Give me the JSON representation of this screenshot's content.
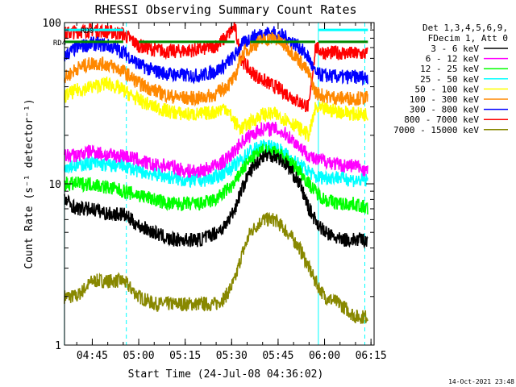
{
  "chart_data": {
    "type": "line",
    "title": "RHESSI Observing Summary Count Rates",
    "xlabel": "Start Time (24-Jul-08 04:36:02)",
    "ylabel": "Count Rate (s⁻¹ detector⁻¹)",
    "yscale": "log",
    "xlim": [
      "04:36:02",
      "06:16:00"
    ],
    "ylim": [
      1,
      100
    ],
    "x_ticks": [
      "04:45",
      "05:00",
      "05:15",
      "05:30",
      "05:45",
      "06:00",
      "06:15"
    ],
    "y_ticks": [
      "1",
      "10",
      "100"
    ],
    "grid": false,
    "legend_position": "top-right",
    "legend_header": [
      "Det 1,3,4,5,6,9,",
      "FDecim 1, Att 0"
    ],
    "footer_date": "14-Oct-2021 23:48",
    "series": [
      {
        "name": "3 - 6 keV",
        "color": "#000000",
        "x": [
          "04:36",
          "04:40",
          "04:45",
          "04:50",
          "04:55",
          "05:00",
          "05:05",
          "05:10",
          "05:15",
          "05:20",
          "05:25",
          "05:28",
          "05:31",
          "05:33",
          "05:36",
          "05:40",
          "05:44",
          "05:48",
          "05:52",
          "05:55",
          "05:57",
          "06:00",
          "06:05",
          "06:10",
          "06:14"
        ],
        "y": [
          8,
          7,
          7,
          6.5,
          6.5,
          5.5,
          5,
          4.5,
          4.5,
          4.5,
          5,
          5.5,
          7,
          9,
          12,
          15,
          15,
          13,
          10,
          7,
          6,
          5,
          4.5,
          4.5,
          4.5
        ]
      },
      {
        "name": "6 - 12 keV",
        "color": "#ff00ff",
        "x": [
          "04:36",
          "04:40",
          "04:45",
          "04:50",
          "04:55",
          "05:00",
          "05:05",
          "05:10",
          "05:15",
          "05:20",
          "05:25",
          "05:28",
          "05:31",
          "05:33",
          "05:36",
          "05:40",
          "05:44",
          "05:48",
          "05:52",
          "05:55",
          "05:57",
          "06:00",
          "06:05",
          "06:10",
          "06:14"
        ],
        "y": [
          15,
          15,
          16,
          15,
          15,
          14,
          13,
          13,
          12,
          12,
          13,
          14,
          16,
          18,
          20,
          22,
          22,
          20,
          17,
          15,
          14,
          14,
          13,
          13,
          12
        ]
      },
      {
        "name": "12 - 25 keV",
        "color": "#00ff00",
        "x": [
          "04:36",
          "04:40",
          "04:45",
          "04:50",
          "04:55",
          "05:00",
          "05:05",
          "05:10",
          "05:15",
          "05:20",
          "05:25",
          "05:28",
          "05:31",
          "05:33",
          "05:36",
          "05:40",
          "05:44",
          "05:48",
          "05:52",
          "05:55",
          "05:57",
          "06:00",
          "06:05",
          "06:10",
          "06:14"
        ],
        "y": [
          10,
          10,
          10,
          9.5,
          9,
          8.5,
          8,
          7.5,
          7.5,
          7.5,
          8,
          9,
          10,
          12,
          14,
          16,
          16,
          14,
          12,
          10,
          9,
          8,
          7.5,
          7.5,
          7
        ]
      },
      {
        "name": "25 - 50 keV",
        "color": "#00ffff",
        "x": [
          "04:36",
          "04:40",
          "04:45",
          "04:50",
          "04:55",
          "05:00",
          "05:05",
          "05:10",
          "05:15",
          "05:20",
          "05:25",
          "05:28",
          "05:31",
          "05:33",
          "05:36",
          "05:40",
          "05:44",
          "05:48",
          "05:52",
          "05:55",
          "05:57",
          "06:00",
          "06:05",
          "06:10",
          "06:14"
        ],
        "y": [
          13,
          13,
          13.5,
          13,
          13,
          12,
          11.5,
          11,
          10.5,
          10.5,
          11,
          12,
          13,
          14,
          16,
          17,
          17,
          15,
          13,
          12,
          11,
          11,
          11,
          10.5,
          10.5
        ]
      },
      {
        "name": "50 - 100 keV",
        "color": "#ffff00",
        "x": [
          "04:36",
          "04:40",
          "04:45",
          "04:50",
          "04:55",
          "05:00",
          "05:05",
          "05:10",
          "05:15",
          "05:20",
          "05:25",
          "05:28",
          "05:31",
          "05:33",
          "05:36",
          "05:40",
          "05:44",
          "05:48",
          "05:52",
          "05:55",
          "05:57",
          "06:00",
          "06:05",
          "06:10",
          "06:14"
        ],
        "y": [
          35,
          38,
          40,
          42,
          38,
          33,
          30,
          28,
          27,
          27,
          28,
          30,
          24,
          22,
          24,
          27,
          27,
          25,
          22,
          20,
          29,
          29,
          28,
          27,
          27
        ]
      },
      {
        "name": "100 - 300 keV",
        "color": "#ff8800",
        "x": [
          "04:36",
          "04:40",
          "04:45",
          "04:50",
          "04:55",
          "05:00",
          "05:05",
          "05:10",
          "05:15",
          "05:20",
          "05:25",
          "05:28",
          "05:31",
          "05:33",
          "05:36",
          "05:40",
          "05:44",
          "05:48",
          "05:52",
          "05:55",
          "05:57",
          "06:00",
          "06:05",
          "06:10",
          "06:14"
        ],
        "y": [
          45,
          52,
          56,
          55,
          50,
          42,
          38,
          35,
          34,
          34,
          36,
          40,
          45,
          62,
          70,
          78,
          80,
          70,
          58,
          48,
          37,
          35,
          34,
          34,
          34
        ]
      },
      {
        "name": "300 - 800 keV",
        "color": "#0000ff",
        "x": [
          "04:36",
          "04:40",
          "04:45",
          "04:50",
          "04:55",
          "05:00",
          "05:05",
          "05:10",
          "05:15",
          "05:20",
          "05:25",
          "05:28",
          "05:31",
          "05:33",
          "05:36",
          "05:40",
          "05:44",
          "05:48",
          "05:52",
          "05:55",
          "05:57",
          "06:00",
          "06:05",
          "06:10",
          "06:14"
        ],
        "y": [
          62,
          70,
          74,
          72,
          66,
          55,
          50,
          48,
          47,
          47,
          50,
          55,
          62,
          72,
          80,
          86,
          86,
          80,
          70,
          60,
          48,
          47,
          46,
          46,
          46
        ]
      },
      {
        "name": "800 - 7000 keV",
        "color": "#ff0000",
        "x": [
          "04:36",
          "04:40",
          "04:45",
          "04:50",
          "04:55",
          "05:00",
          "05:05",
          "05:10",
          "05:15",
          "05:20",
          "05:25",
          "05:28",
          "05:31",
          "05:33",
          "05:36",
          "05:40",
          "05:44",
          "05:48",
          "05:52",
          "05:55",
          "05:57",
          "06:00",
          "06:05",
          "06:10",
          "06:14"
        ],
        "y": [
          85,
          88,
          90,
          88,
          85,
          72,
          68,
          66,
          67,
          68,
          72,
          80,
          95,
          60,
          50,
          44,
          40,
          36,
          32,
          30,
          70,
          65,
          65,
          64,
          64
        ]
      },
      {
        "name": "7000 - 15000 keV",
        "color": "#888800",
        "x": [
          "04:36",
          "04:40",
          "04:45",
          "04:50",
          "04:55",
          "05:00",
          "05:05",
          "05:10",
          "05:15",
          "05:20",
          "05:25",
          "05:28",
          "05:31",
          "05:33",
          "05:36",
          "05:40",
          "05:44",
          "05:48",
          "05:52",
          "05:55",
          "05:57",
          "06:00",
          "06:05",
          "06:10",
          "06:14"
        ],
        "y": [
          2,
          2,
          2.5,
          2.5,
          2.5,
          2,
          1.8,
          1.8,
          1.8,
          1.8,
          1.8,
          2,
          2.5,
          3.5,
          5,
          6,
          6,
          5,
          4,
          3,
          2.5,
          2,
          1.8,
          1.5,
          1.5
        ]
      }
    ],
    "state_bars": [
      {
        "label": "RD0",
        "color": "#00ffff",
        "level": 90,
        "segments": [
          [
            "04:36",
            "04:55"
          ],
          [
            "05:58",
            "06:14"
          ]
        ]
      },
      {
        "label": "RD4",
        "color": "#008800",
        "level": 76,
        "segments": [
          [
            "04:36",
            "04:55"
          ],
          [
            "05:00",
            "05:31"
          ],
          [
            "05:36",
            "05:57"
          ],
          [
            "05:58",
            "06:14"
          ]
        ]
      }
    ],
    "vlines_solid": [
      "04:36",
      "05:58"
    ],
    "vlines_dashed": [
      "04:56",
      "06:13"
    ],
    "vline_color": "#00ffff"
  }
}
